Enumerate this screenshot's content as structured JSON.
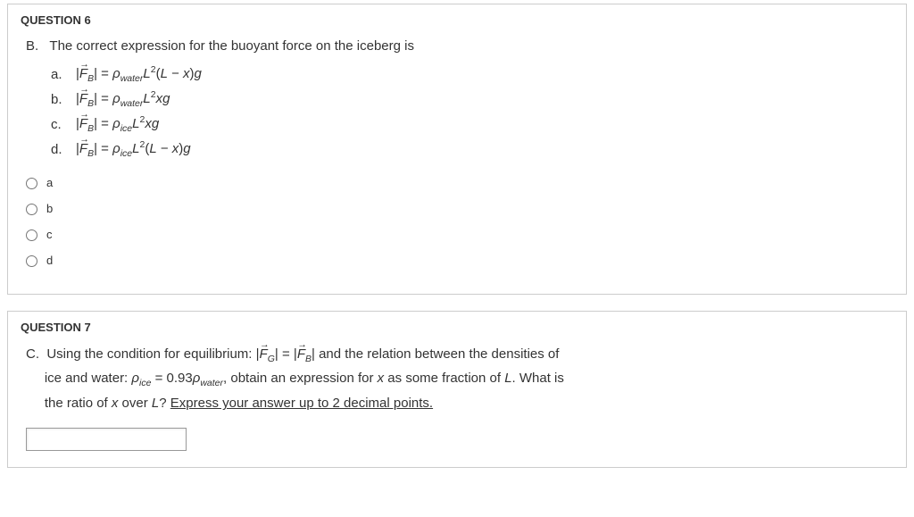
{
  "q6": {
    "header": "QUESTION 6",
    "part_label": "B.",
    "prompt": "The correct expression for the buoyant force on the iceberg is",
    "eq_labels": [
      "a.",
      "b.",
      "c.",
      "d."
    ],
    "options": [
      "a",
      "b",
      "c",
      "d"
    ],
    "fb": "F",
    "fb_sub": "B",
    "rho_water": "ρ",
    "rho_water_sub": "water",
    "rho_ice": "ρ",
    "rho_ice_sub": "ice",
    "L": "L",
    "x": "x",
    "g": "g",
    "eq": "=",
    "two": "2",
    "Lmx_open": "(",
    "Lmx_close": ")",
    "minus": " − "
  },
  "q7": {
    "header": "QUESTION 7",
    "part_label": "C.",
    "text1": "Using the condition for equilibrium: ",
    "text2": " and the relation between the densities of",
    "text3": "ice and water: ",
    "text4": ", obtain an expression for ",
    "text5": " as some fraction of ",
    "text6": ". What is",
    "text7": "the ratio of ",
    "text8": " over ",
    "text9": "? ",
    "underline": "Express your answer up to 2 decimal points.",
    "fg_sub": "G",
    "fb_sub": "B",
    "F": "F",
    "eq": " = ",
    "rho": "ρ",
    "ice": "ice",
    "water": "water",
    "coef": "0.93",
    "x": "x",
    "L": "L"
  },
  "colors": {
    "text": "#333333",
    "border": "#cccccc",
    "bg": "#ffffff"
  }
}
